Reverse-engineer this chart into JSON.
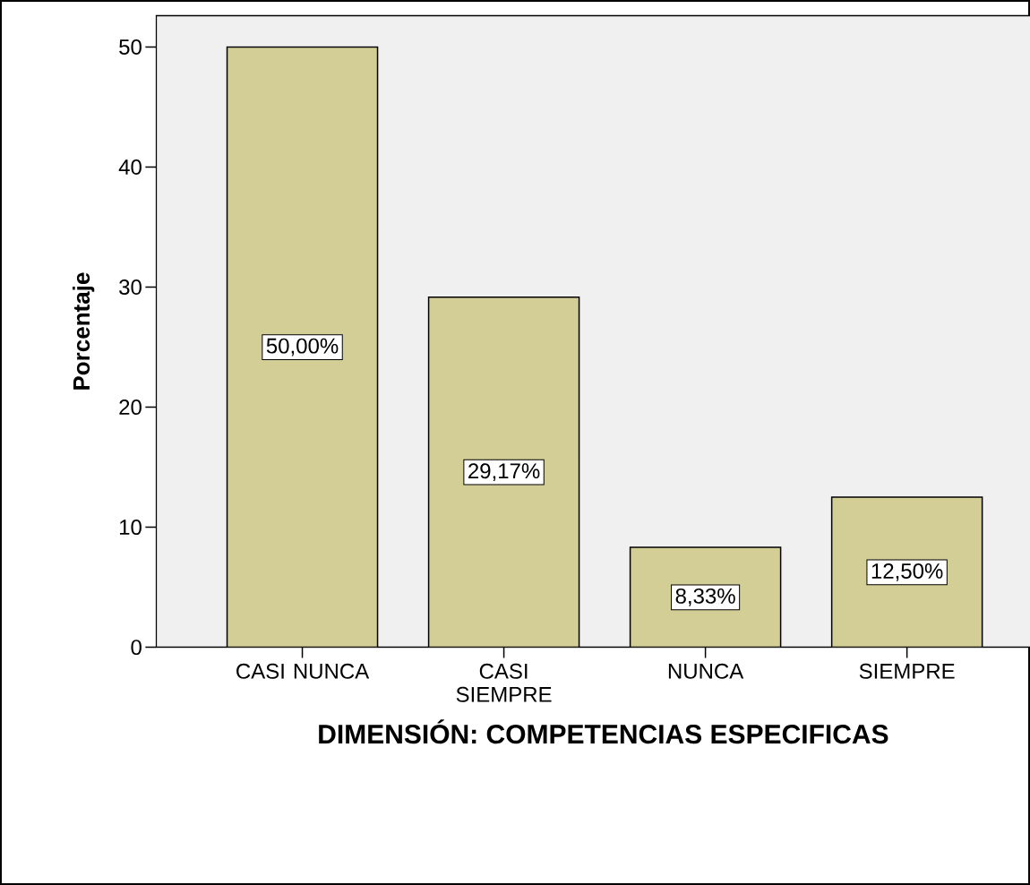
{
  "chart_data": {
    "type": "bar",
    "xlabel": "DIMENSIÓN: COMPETENCIAS ESPECIFICAS",
    "ylabel": "Porcentaje",
    "categories": [
      "CASI NUNCA",
      "CASI SIEMPRE",
      "NUNCA",
      "SIEMPRE"
    ],
    "values": [
      50,
      29.17,
      8.33,
      12.5
    ],
    "value_labels": [
      "50,00%",
      "29,17%",
      "8,33%",
      "12,50%"
    ],
    "color": "#d3cd96",
    "ylim": [
      0,
      52.6
    ],
    "yticks": [
      0,
      10,
      20,
      30,
      40,
      50
    ],
    "grid": false
  }
}
